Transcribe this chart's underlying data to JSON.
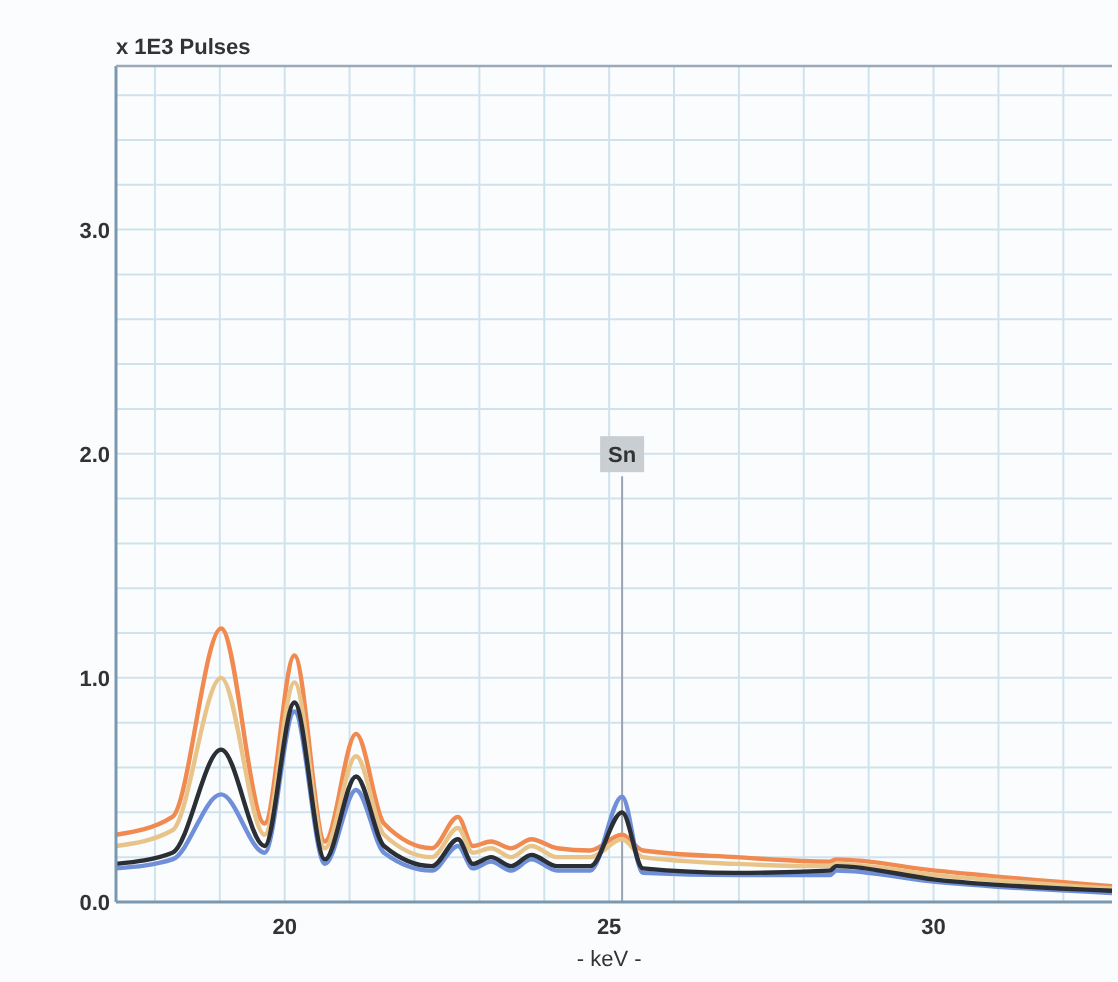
{
  "chart_data": {
    "type": "line",
    "xlabel": "- keV -",
    "ylabel": "x 1E3 Pulses",
    "xlim": [
      17.4,
      32.75
    ],
    "xticks": [
      {
        "value": 18,
        "label": null
      },
      {
        "value": 19,
        "label": null
      },
      20,
      {
        "value": 21,
        "label": null
      },
      {
        "value": 22,
        "label": null
      },
      {
        "value": 23,
        "label": null
      },
      {
        "value": 24,
        "label": null
      },
      25,
      {
        "value": 26,
        "label": null
      },
      {
        "value": 27,
        "label": null
      },
      {
        "value": 28,
        "label": null
      },
      {
        "value": 29,
        "label": null
      },
      30,
      {
        "value": 31,
        "label": null
      },
      {
        "value": 32,
        "label": null
      }
    ],
    "ylim": [
      0,
      3.73
    ],
    "yticks": [
      {
        "value": 0,
        "label": "0.0"
      },
      {
        "value": 0.2,
        "label": null
      },
      {
        "value": 0.4,
        "label": null
      },
      {
        "value": 0.6,
        "label": null
      },
      {
        "value": 0.8,
        "label": null
      },
      {
        "value": 1,
        "label": "1.0"
      },
      {
        "value": 1.2,
        "label": null
      },
      {
        "value": 1.4,
        "label": null
      },
      {
        "value": 1.6,
        "label": null
      },
      {
        "value": 1.8,
        "label": null
      },
      {
        "value": 2,
        "label": "2.0"
      },
      {
        "value": 2.2,
        "label": null
      },
      {
        "value": 2.4,
        "label": null
      },
      {
        "value": 2.6,
        "label": null
      },
      {
        "value": 2.8,
        "label": null
      },
      {
        "value": 3,
        "label": "3.0"
      },
      {
        "value": 3.2,
        "label": null
      },
      {
        "value": 3.4,
        "label": null
      },
      {
        "value": 3.6,
        "label": null
      }
    ],
    "grid": true,
    "line_style": "solid",
    "marker": "none",
    "x": [
      17.4,
      18.27,
      19.02,
      19.69,
      20.15,
      20.62,
      21.1,
      21.53,
      22.27,
      22.67,
      22.9,
      23.18,
      23.49,
      23.8,
      24.2,
      24.71,
      25.2,
      25.52,
      26.96,
      28.4,
      28.5,
      30.03,
      32.75
    ],
    "series": [
      {
        "color": "#f08a50",
        "values": [
          0.3,
          0.38,
          1.22,
          0.35,
          1.1,
          0.27,
          0.75,
          0.35,
          0.24,
          0.38,
          0.25,
          0.27,
          0.24,
          0.28,
          0.24,
          0.23,
          0.3,
          0.23,
          0.2,
          0.18,
          0.19,
          0.14,
          0.07
        ]
      },
      {
        "color": "#e8c48a",
        "values": [
          0.25,
          0.32,
          1.0,
          0.3,
          0.98,
          0.24,
          0.65,
          0.3,
          0.2,
          0.33,
          0.22,
          0.24,
          0.2,
          0.25,
          0.2,
          0.2,
          0.28,
          0.2,
          0.17,
          0.16,
          0.17,
          0.12,
          0.06
        ]
      },
      {
        "color": "#6f8fd8",
        "values": [
          0.15,
          0.19,
          0.48,
          0.22,
          0.85,
          0.17,
          0.5,
          0.22,
          0.14,
          0.25,
          0.15,
          0.18,
          0.14,
          0.19,
          0.14,
          0.14,
          0.47,
          0.13,
          0.12,
          0.12,
          0.14,
          0.09,
          0.04
        ]
      },
      {
        "color": "#2a2e35",
        "values": [
          0.17,
          0.22,
          0.68,
          0.25,
          0.89,
          0.19,
          0.56,
          0.25,
          0.16,
          0.28,
          0.17,
          0.2,
          0.16,
          0.21,
          0.16,
          0.16,
          0.4,
          0.15,
          0.13,
          0.14,
          0.16,
          0.1,
          0.05
        ]
      }
    ],
    "ref_lines": [
      {
        "axis": "x",
        "value": 25.2,
        "label": "Sn",
        "color": "#9aa4ae"
      }
    ]
  }
}
